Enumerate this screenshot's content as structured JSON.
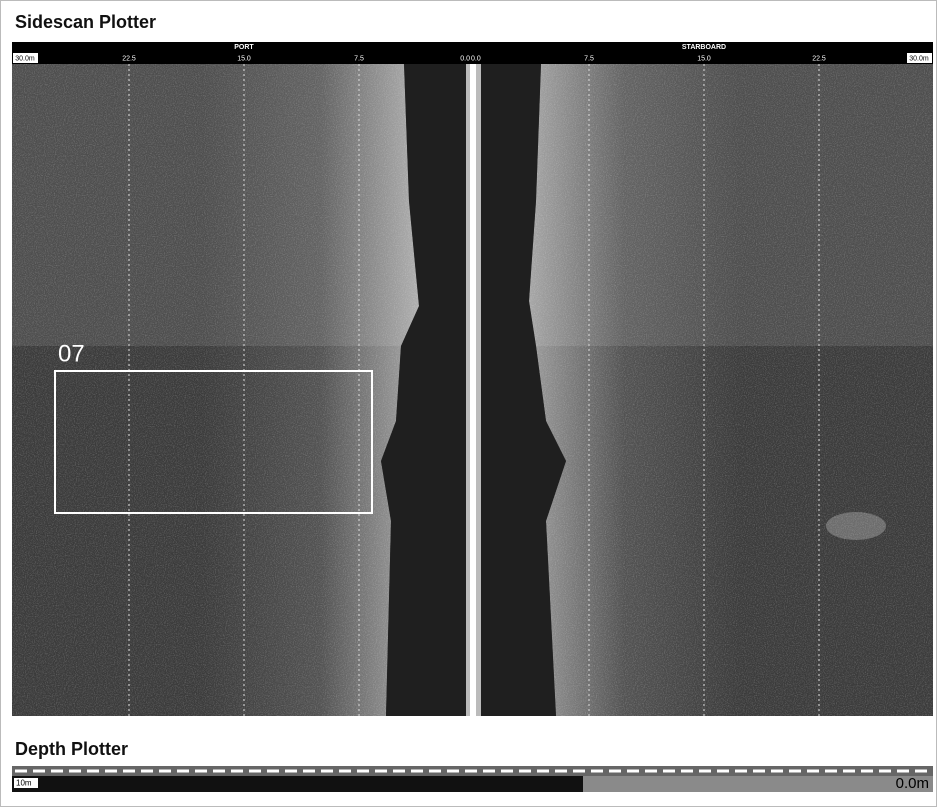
{
  "sidescan": {
    "title": "Sidescan Plotter",
    "port": "PORT",
    "starboard": "STARBOARD",
    "scale": [
      "30.0m",
      "22.5",
      "15.0",
      "7.5",
      "0.0",
      "0.0",
      "7.5",
      "15.0",
      "22.5",
      "30.0m"
    ],
    "marker": "07"
  },
  "depth": {
    "title": "Depth Plotter",
    "range": "10m",
    "reading": "0.0m"
  }
}
